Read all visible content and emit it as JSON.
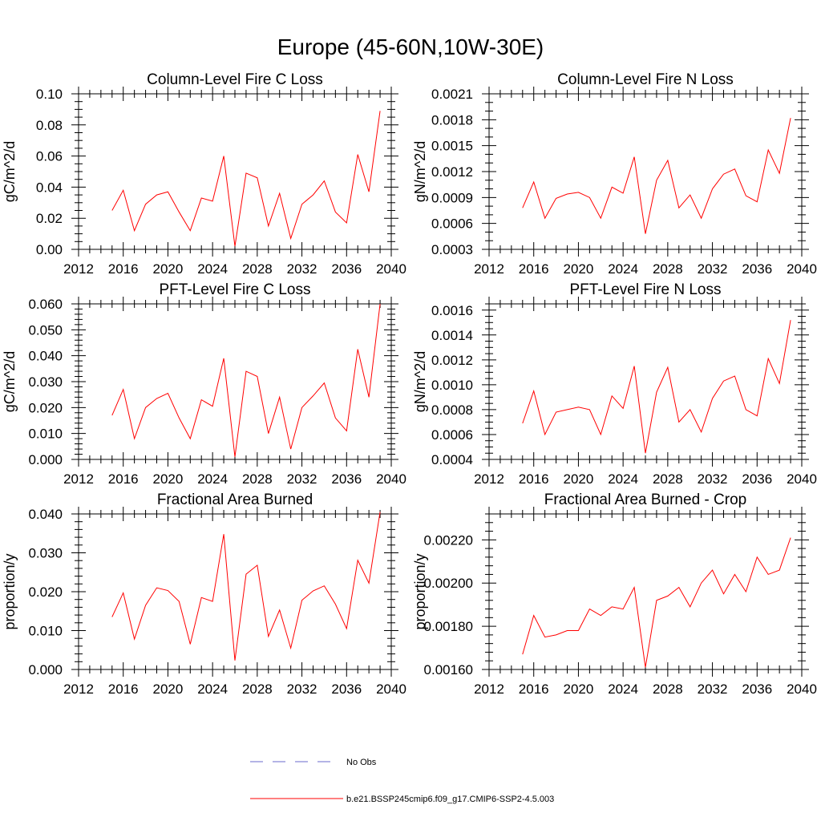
{
  "figure_title": "Europe (45-60N,10W-30E)",
  "legend": [
    {
      "label": "No Obs",
      "color": "#6a6acd",
      "style": "dashed"
    },
    {
      "label": "b.e21.BSSP245cmip6.f09_g17.CMIP6-SSP2-4.5.003",
      "color": "#ff0000",
      "style": "solid"
    }
  ],
  "chart_data": [
    {
      "type": "line",
      "title": "Column-Level Fire C Loss",
      "ylabel": "gC/m^2/d",
      "xlabel": "",
      "xlim": [
        2012,
        2040
      ],
      "xticks": [
        2012,
        2016,
        2020,
        2024,
        2028,
        2032,
        2036,
        2040
      ],
      "xtick_labels": [
        "2012",
        "2016",
        "2020",
        "2024",
        "2028",
        "2032",
        "2036",
        "2040"
      ],
      "ylim": [
        0.0,
        0.1
      ],
      "yticks": [
        0.0,
        0.02,
        0.04,
        0.06,
        0.08,
        0.1
      ],
      "ytick_labels": [
        "0.00",
        "0.02",
        "0.04",
        "0.06",
        "0.08",
        "0.10"
      ],
      "yminor": 0.005,
      "color": "#ff0000",
      "x": [
        2015,
        2016,
        2017,
        2018,
        2019,
        2020,
        2021,
        2022,
        2023,
        2024,
        2025,
        2026,
        2027,
        2028,
        2029,
        2030,
        2031,
        2032,
        2033,
        2034,
        2035,
        2036,
        2037,
        2038,
        2039
      ],
      "values": [
        0.025,
        0.038,
        0.012,
        0.029,
        0.035,
        0.037,
        0.024,
        0.012,
        0.033,
        0.031,
        0.06,
        0.002,
        0.049,
        0.046,
        0.015,
        0.036,
        0.007,
        0.029,
        0.035,
        0.044,
        0.024,
        0.017,
        0.061,
        0.037,
        0.089
      ]
    },
    {
      "type": "line",
      "title": "Column-Level Fire N Loss",
      "ylabel": "gN/m^2/d",
      "xlabel": "",
      "xlim": [
        2012,
        2040
      ],
      "xticks": [
        2012,
        2016,
        2020,
        2024,
        2028,
        2032,
        2036,
        2040
      ],
      "xtick_labels": [
        "2012",
        "2016",
        "2020",
        "2024",
        "2028",
        "2032",
        "2036",
        "2040"
      ],
      "ylim": [
        0.0003,
        0.0021
      ],
      "yticks": [
        0.0003,
        0.0006,
        0.0009,
        0.0012,
        0.0015,
        0.0018,
        0.0021
      ],
      "ytick_labels": [
        "0.0003",
        "0.0006",
        "0.0009",
        "0.0012",
        "0.0015",
        "0.0018",
        "0.0021"
      ],
      "yminor": 0.0001,
      "color": "#ff0000",
      "x": [
        2015,
        2016,
        2017,
        2018,
        2019,
        2020,
        2021,
        2022,
        2023,
        2024,
        2025,
        2026,
        2027,
        2028,
        2029,
        2030,
        2031,
        2032,
        2033,
        2034,
        2035,
        2036,
        2037,
        2038,
        2039
      ],
      "values": [
        0.00078,
        0.00108,
        0.00066,
        0.00089,
        0.00094,
        0.00096,
        0.0009,
        0.00066,
        0.00102,
        0.00095,
        0.00137,
        0.00048,
        0.0011,
        0.00133,
        0.00078,
        0.00093,
        0.00066,
        0.001,
        0.00117,
        0.00123,
        0.00092,
        0.00085,
        0.00145,
        0.00118,
        0.00182
      ]
    },
    {
      "type": "line",
      "title": "PFT-Level Fire C Loss",
      "ylabel": "gC/m^2/d",
      "xlabel": "",
      "xlim": [
        2012,
        2040
      ],
      "xticks": [
        2012,
        2016,
        2020,
        2024,
        2028,
        2032,
        2036,
        2040
      ],
      "xtick_labels": [
        "2012",
        "2016",
        "2020",
        "2024",
        "2028",
        "2032",
        "2036",
        "2040"
      ],
      "ylim": [
        0.0,
        0.06
      ],
      "yticks": [
        0.0,
        0.01,
        0.02,
        0.03,
        0.04,
        0.05,
        0.06
      ],
      "ytick_labels": [
        "0.000",
        "0.010",
        "0.020",
        "0.030",
        "0.040",
        "0.050",
        "0.060"
      ],
      "yminor": 0.002,
      "color": "#ff0000",
      "x": [
        2015,
        2016,
        2017,
        2018,
        2019,
        2020,
        2021,
        2022,
        2023,
        2024,
        2025,
        2026,
        2027,
        2028,
        2029,
        2030,
        2031,
        2032,
        2033,
        2034,
        2035,
        2036,
        2037,
        2038,
        2039
      ],
      "values": [
        0.017,
        0.027,
        0.008,
        0.02,
        0.0235,
        0.0255,
        0.016,
        0.008,
        0.023,
        0.0205,
        0.039,
        0.001,
        0.034,
        0.032,
        0.01,
        0.024,
        0.004,
        0.02,
        0.0245,
        0.0295,
        0.016,
        0.011,
        0.0425,
        0.024,
        0.06
      ]
    },
    {
      "type": "line",
      "title": "PFT-Level Fire N Loss",
      "ylabel": "gN/m^2/d",
      "xlabel": "",
      "xlim": [
        2012,
        2040
      ],
      "xticks": [
        2012,
        2016,
        2020,
        2024,
        2028,
        2032,
        2036,
        2040
      ],
      "xtick_labels": [
        "2012",
        "2016",
        "2020",
        "2024",
        "2028",
        "2032",
        "2036",
        "2040"
      ],
      "ylim": [
        0.0004,
        0.00165
      ],
      "yticks": [
        0.0004,
        0.0006,
        0.0008,
        0.001,
        0.0012,
        0.0014,
        0.0016
      ],
      "ytick_labels": [
        "0.0004",
        "0.0006",
        "0.0008",
        "0.0010",
        "0.0012",
        "0.0014",
        "0.0016"
      ],
      "yminor": 5e-05,
      "color": "#ff0000",
      "x": [
        2015,
        2016,
        2017,
        2018,
        2019,
        2020,
        2021,
        2022,
        2023,
        2024,
        2025,
        2026,
        2027,
        2028,
        2029,
        2030,
        2031,
        2032,
        2033,
        2034,
        2035,
        2036,
        2037,
        2038,
        2039
      ],
      "values": [
        0.00069,
        0.00095,
        0.0006,
        0.00078,
        0.0008,
        0.00082,
        0.0008,
        0.0006,
        0.00091,
        0.00081,
        0.00115,
        0.00045,
        0.00094,
        0.00114,
        0.0007,
        0.0008,
        0.00062,
        0.00089,
        0.00103,
        0.00107,
        0.0008,
        0.00075,
        0.00121,
        0.00101,
        0.00152
      ]
    },
    {
      "type": "line",
      "title": "Fractional Area Burned",
      "ylabel": "proportion/y",
      "xlabel": "",
      "xlim": [
        2012,
        2040
      ],
      "xticks": [
        2012,
        2016,
        2020,
        2024,
        2028,
        2032,
        2036,
        2040
      ],
      "xtick_labels": [
        "2012",
        "2016",
        "2020",
        "2024",
        "2028",
        "2032",
        "2036",
        "2040"
      ],
      "ylim": [
        0.0,
        0.04
      ],
      "yticks": [
        0.0,
        0.01,
        0.02,
        0.03,
        0.04
      ],
      "ytick_labels": [
        "0.000",
        "0.010",
        "0.020",
        "0.030",
        "0.040"
      ],
      "yminor": 0.002,
      "color": "#ff0000",
      "x": [
        2015,
        2016,
        2017,
        2018,
        2019,
        2020,
        2021,
        2022,
        2023,
        2024,
        2025,
        2026,
        2027,
        2028,
        2029,
        2030,
        2031,
        2032,
        2033,
        2034,
        2035,
        2036,
        2037,
        2038,
        2039
      ],
      "values": [
        0.0135,
        0.0197,
        0.0078,
        0.0165,
        0.021,
        0.0203,
        0.0175,
        0.0065,
        0.0185,
        0.0175,
        0.0348,
        0.0023,
        0.0245,
        0.0268,
        0.0085,
        0.0153,
        0.0055,
        0.0178,
        0.0202,
        0.0215,
        0.0168,
        0.0105,
        0.0281,
        0.0222,
        0.0405
      ]
    },
    {
      "type": "line",
      "title": "Fractional Area Burned - Crop",
      "ylabel": "proportion/y",
      "xlabel": "",
      "xlim": [
        2012,
        2040
      ],
      "xticks": [
        2012,
        2016,
        2020,
        2024,
        2028,
        2032,
        2036,
        2040
      ],
      "xtick_labels": [
        "2012",
        "2016",
        "2020",
        "2024",
        "2028",
        "2032",
        "2036",
        "2040"
      ],
      "ylim": [
        0.0016,
        0.00232
      ],
      "yticks": [
        0.0016,
        0.0018,
        0.002,
        0.0022
      ],
      "ytick_labels": [
        "0.00160",
        "0.00180",
        "0.00200",
        "0.00220"
      ],
      "yminor": 4e-05,
      "color": "#ff0000",
      "x": [
        2015,
        2016,
        2017,
        2018,
        2019,
        2020,
        2021,
        2022,
        2023,
        2024,
        2025,
        2026,
        2027,
        2028,
        2029,
        2030,
        2031,
        2032,
        2033,
        2034,
        2035,
        2036,
        2037,
        2038,
        2039
      ],
      "values": [
        0.00167,
        0.00185,
        0.00175,
        0.00176,
        0.00178,
        0.00178,
        0.00188,
        0.00185,
        0.00189,
        0.00188,
        0.00198,
        0.00161,
        0.00192,
        0.00194,
        0.00198,
        0.00189,
        0.002,
        0.00206,
        0.00195,
        0.00204,
        0.00196,
        0.00212,
        0.00204,
        0.00206,
        0.00221
      ]
    }
  ]
}
